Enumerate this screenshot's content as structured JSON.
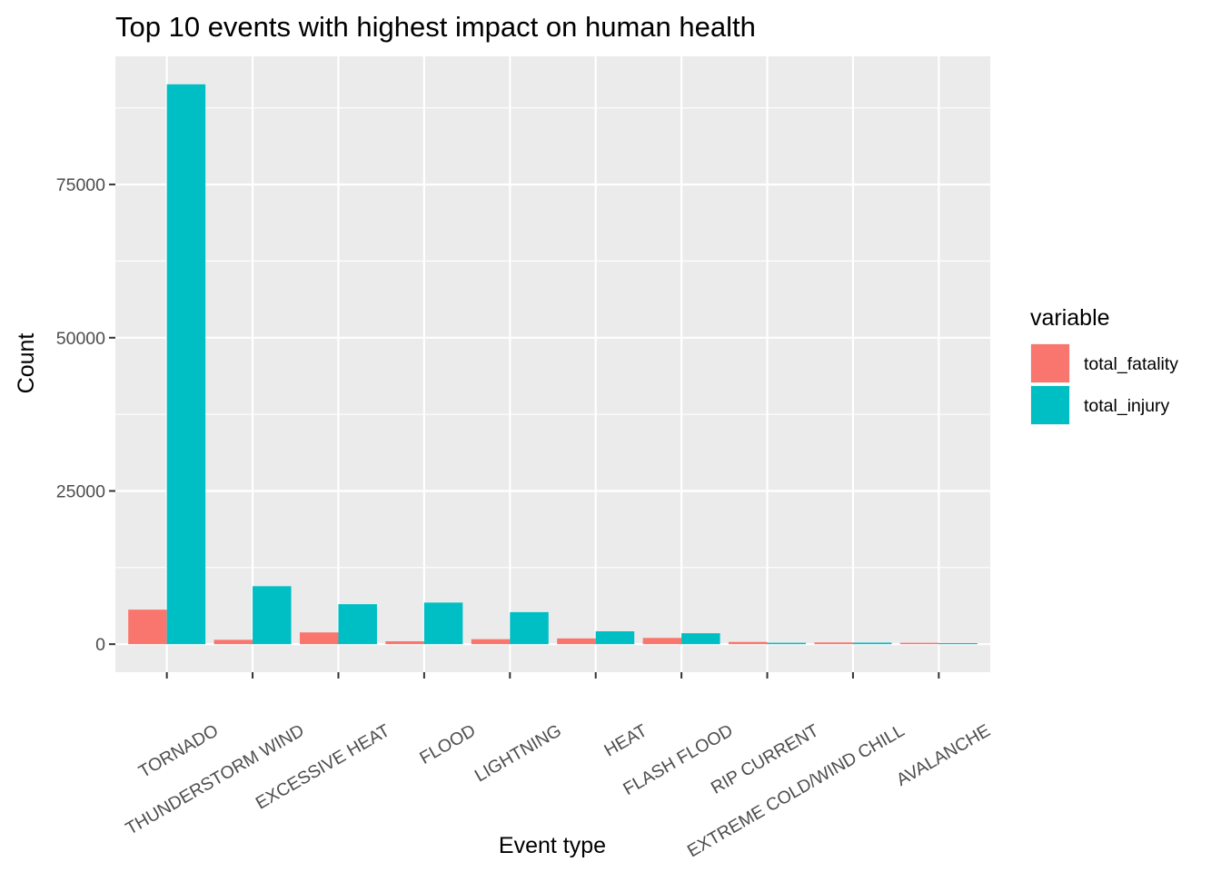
{
  "chart_data": {
    "type": "bar",
    "title": "Top 10 events with highest impact on human health",
    "xlabel": "Event type",
    "ylabel": "Count",
    "categories": [
      "TORNADO",
      "THUNDERSTORM WIND",
      "EXCESSIVE HEAT",
      "FLOOD",
      "LIGHTNING",
      "HEAT",
      "FLASH FLOOD",
      "RIP CURRENT",
      "EXTREME COLD/WIND CHILL",
      "AVALANCHE"
    ],
    "series": [
      {
        "name": "total_fatality",
        "color": "#F8766D",
        "values": [
          5633,
          709,
          1920,
          470,
          817,
          937,
          1018,
          368,
          287,
          224
        ]
      },
      {
        "name": "total_injury",
        "color": "#00BFC4",
        "values": [
          91346,
          9458,
          6525,
          6789,
          5230,
          2100,
          1785,
          232,
          255,
          170
        ]
      }
    ],
    "y_ticks": [
      0,
      25000,
      50000,
      75000
    ],
    "ylim": [
      -4567,
      95913
    ],
    "legend_title": "variable",
    "legend_position": "right",
    "grid": true,
    "panel_background": "#EBEBEB",
    "x_tick_rotation_deg": -30
  }
}
